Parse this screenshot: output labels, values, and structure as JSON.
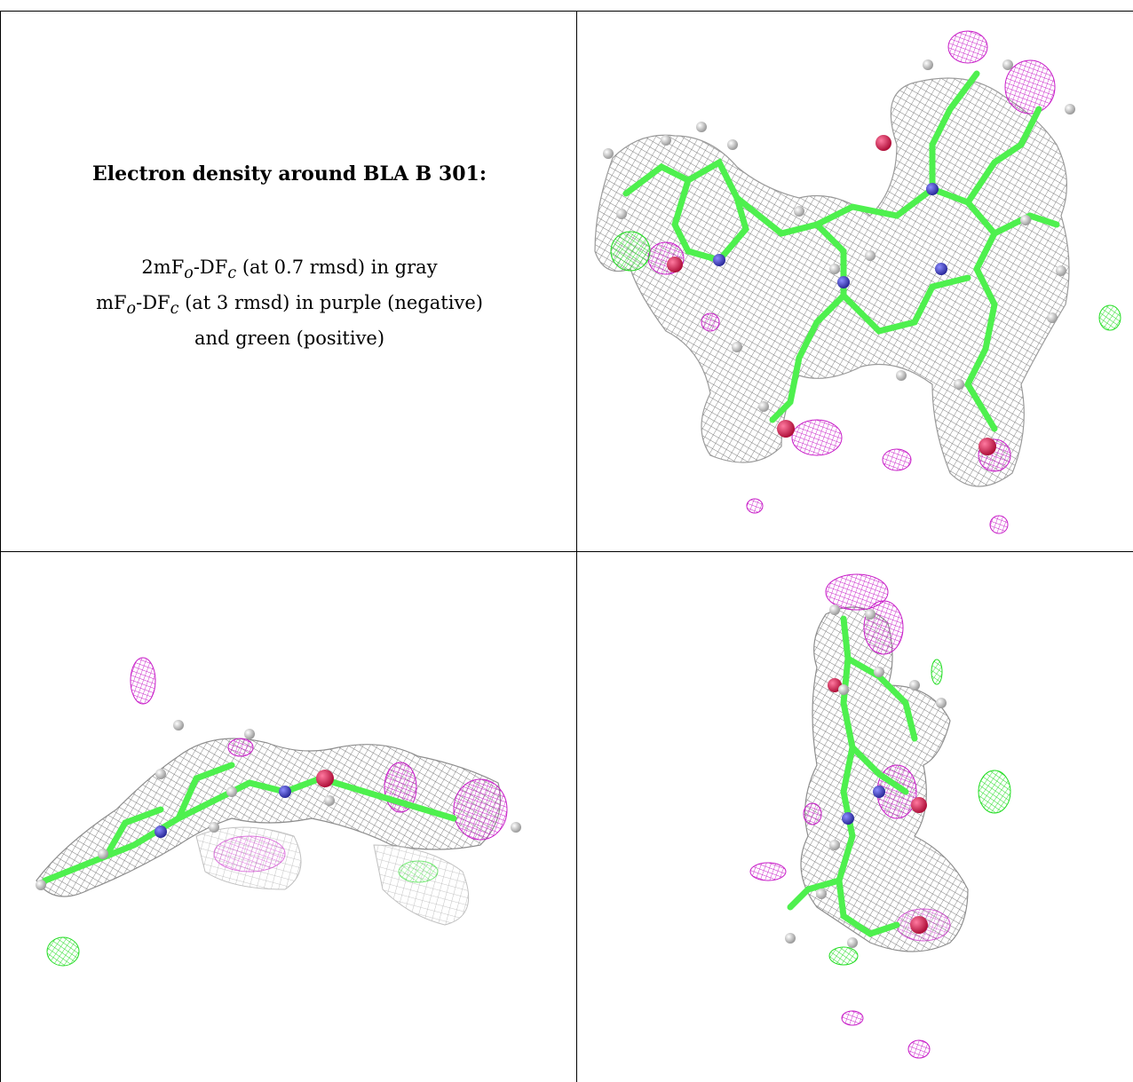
{
  "caption": {
    "title": "Electron density around BLA B 301:",
    "line1": {
      "prefix": "2mF",
      "sub1": "o",
      "mid": "-DF",
      "sub2": "c",
      "suffix": " (at 0.7 rmsd) in gray"
    },
    "line2": {
      "prefix": "mF",
      "sub1": "o",
      "mid": "-DF",
      "sub2": "c",
      "suffix": " (at 3 rmsd) in purple (negative)"
    },
    "line3": "and green (positive)"
  },
  "panels": [
    {
      "name": "front-view"
    },
    {
      "name": "side-view"
    },
    {
      "name": "edge-view"
    }
  ],
  "colors": {
    "mesh_gray": "#8a8a8a",
    "mesh_purple": "#cc22cc",
    "mesh_green": "#33ee33",
    "carbon_green": "#4ef04e",
    "nitrogen_blue": "#4040c8",
    "oxygen_red": "#e0204a",
    "hydrogen_white": "#e6e6e6"
  }
}
